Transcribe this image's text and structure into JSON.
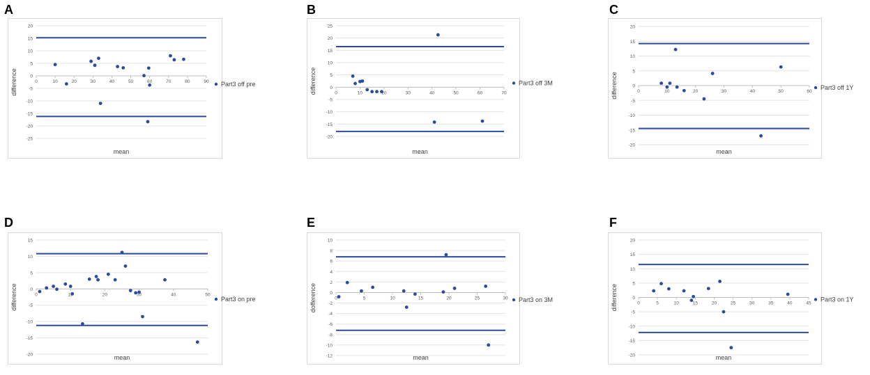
{
  "chart_data": [
    {
      "type": "scatter",
      "panel_label": "A",
      "series_name": "Part3 off pre",
      "xlabel": "mean",
      "ylabel": "difference",
      "xlim": [
        0,
        90
      ],
      "ylim": [
        -25,
        20
      ],
      "xticks": [
        0,
        10,
        20,
        30,
        40,
        50,
        60,
        70,
        80,
        90
      ],
      "yticks": [
        -25,
        -20,
        -15,
        -10,
        -5,
        0,
        5,
        10,
        15,
        20
      ],
      "limit_lines": [
        15.2,
        -16.2
      ],
      "points": [
        [
          10,
          4.5
        ],
        [
          16,
          -3.2
        ],
        [
          29,
          5.8
        ],
        [
          31,
          4.2
        ],
        [
          33,
          7
        ],
        [
          34,
          -11
        ],
        [
          43,
          3.7
        ],
        [
          46,
          3.2
        ],
        [
          57,
          0.1
        ],
        [
          59,
          -18.3
        ],
        [
          59.5,
          3.1
        ],
        [
          60,
          -3.7
        ],
        [
          71,
          8
        ],
        [
          73,
          6.4
        ],
        [
          78,
          6.6
        ]
      ]
    },
    {
      "type": "scatter",
      "panel_label": "B",
      "series_name": "Part3 off 3M",
      "xlabel": "mean",
      "ylabel": "difference",
      "xlim": [
        0,
        70
      ],
      "ylim": [
        -20,
        25
      ],
      "xticks": [
        0,
        10,
        20,
        30,
        40,
        50,
        60,
        70
      ],
      "yticks": [
        -20,
        -15,
        -10,
        -5,
        0,
        5,
        10,
        15,
        20,
        25
      ],
      "limit_lines": [
        16.5,
        -18
      ],
      "points": [
        [
          7,
          4.5
        ],
        [
          8,
          1.5
        ],
        [
          10,
          2.3
        ],
        [
          11,
          2.5
        ],
        [
          13,
          -1
        ],
        [
          15,
          -1.8
        ],
        [
          17,
          -1.8
        ],
        [
          19,
          -1.8
        ],
        [
          41,
          -14.2
        ],
        [
          42.5,
          21.3
        ],
        [
          61,
          -13.8
        ]
      ]
    },
    {
      "type": "scatter",
      "panel_label": "C",
      "series_name": "Part3 off 1Y",
      "xlabel": "mean",
      "ylabel": "difference",
      "xlim": [
        0,
        60
      ],
      "ylim": [
        -20,
        20
      ],
      "xticks": [
        0,
        10,
        20,
        30,
        40,
        50,
        60
      ],
      "yticks": [
        -20,
        -15,
        -10,
        -5,
        0,
        5,
        10,
        15,
        20
      ],
      "limit_lines": [
        14.2,
        -14.5
      ],
      "points": [
        [
          8,
          0.8
        ],
        [
          10,
          -0.5
        ],
        [
          11,
          0.8
        ],
        [
          13,
          12.2
        ],
        [
          13.5,
          -0.5
        ],
        [
          16,
          -1.7
        ],
        [
          23,
          -4.5
        ],
        [
          26,
          4.1
        ],
        [
          43,
          -17
        ],
        [
          50,
          6.3
        ]
      ]
    },
    {
      "type": "scatter",
      "panel_label": "D",
      "series_name": "Part3 on pre",
      "xlabel": "mean",
      "ylabel": "difference",
      "xlim": [
        0,
        50
      ],
      "ylim": [
        -20,
        15
      ],
      "xticks": [
        0,
        10,
        20,
        30,
        40,
        50
      ],
      "yticks": [
        -20,
        -15,
        -10,
        -5,
        0,
        5,
        10,
        15
      ],
      "limit_lines": [
        10.8,
        -11.2
      ],
      "points": [
        [
          1,
          -0.8
        ],
        [
          3,
          0.3
        ],
        [
          5,
          0.8
        ],
        [
          6,
          -0.1
        ],
        [
          8.5,
          1.5
        ],
        [
          10,
          0.8
        ],
        [
          10.5,
          -1.5
        ],
        [
          13.5,
          -10.7
        ],
        [
          15.5,
          3
        ],
        [
          17.5,
          3.8
        ],
        [
          18,
          2.8
        ],
        [
          21,
          4.5
        ],
        [
          23,
          2.8
        ],
        [
          25,
          11.2
        ],
        [
          26,
          7
        ],
        [
          27.5,
          -0.5
        ],
        [
          29,
          -1.2
        ],
        [
          30,
          -1
        ],
        [
          31,
          -8.5
        ],
        [
          37.5,
          2.8
        ],
        [
          47,
          -16.3
        ]
      ]
    },
    {
      "type": "scatter",
      "panel_label": "E",
      "series_name": "Part3 on 3M",
      "xlabel": "mean",
      "ylabel": "dofference",
      "xlim": [
        0,
        30
      ],
      "ylim": [
        -12,
        10
      ],
      "xticks": [
        0,
        5,
        10,
        15,
        20,
        25,
        30
      ],
      "yticks": [
        -12,
        -10,
        -8,
        -6,
        -4,
        -2,
        0,
        2,
        4,
        6,
        8,
        10
      ],
      "limit_lines": [
        6.8,
        -7.2
      ],
      "points": [
        [
          0.5,
          -0.8
        ],
        [
          2,
          1.9
        ],
        [
          4.5,
          0.3
        ],
        [
          6.5,
          1
        ],
        [
          12,
          0.3
        ],
        [
          12.5,
          -2.8
        ],
        [
          14,
          -0.3
        ],
        [
          19,
          0.1
        ],
        [
          19.5,
          7.2
        ],
        [
          21,
          0.8
        ],
        [
          26.5,
          1.2
        ],
        [
          27,
          -10
        ]
      ]
    },
    {
      "type": "scatter",
      "panel_label": "F",
      "series_name": "Part3 on 1Y",
      "xlabel": "mean",
      "ylabel": "difference",
      "xlim": [
        0,
        45
      ],
      "ylim": [
        -20,
        20
      ],
      "xticks": [
        0,
        5,
        10,
        15,
        20,
        25,
        30,
        35,
        40,
        45
      ],
      "yticks": [
        -20,
        -15,
        -10,
        -5,
        0,
        5,
        10,
        15,
        20
      ],
      "limit_lines": [
        11.5,
        -12.2
      ],
      "points": [
        [
          4,
          2.3
        ],
        [
          6,
          4.8
        ],
        [
          8,
          3
        ],
        [
          12,
          2.3
        ],
        [
          14,
          -1
        ],
        [
          14.5,
          0.3
        ],
        [
          18.5,
          3.1
        ],
        [
          21.5,
          5.6
        ],
        [
          22.5,
          -5
        ],
        [
          24.5,
          -17.5
        ],
        [
          39.5,
          1.1
        ]
      ]
    }
  ]
}
